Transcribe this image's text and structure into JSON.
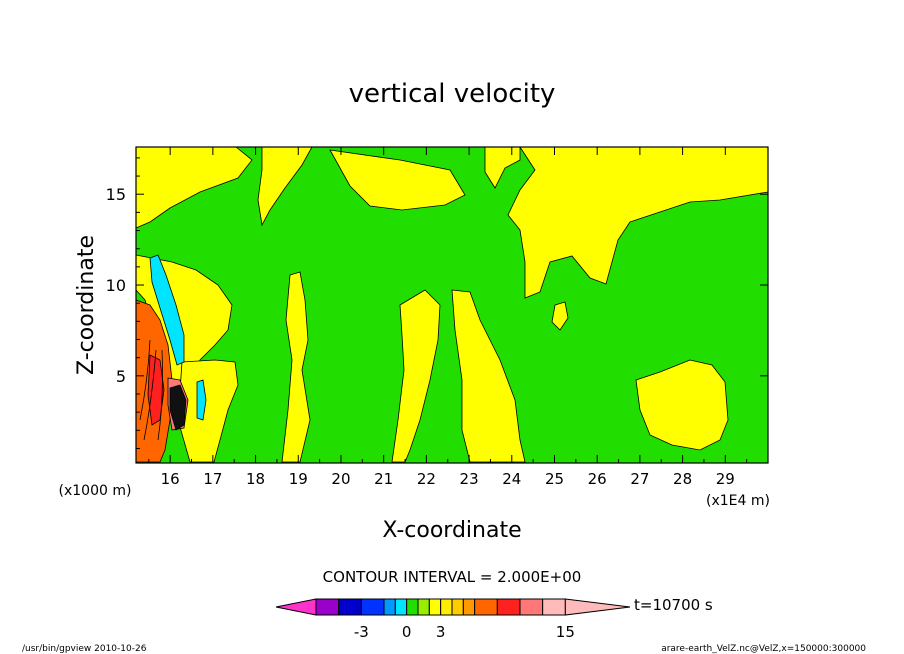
{
  "chart_data": {
    "type": "heatmap",
    "title": "vertical velocity",
    "xlabel": "X-coordinate",
    "ylabel": "Z-coordinate",
    "x_unit_left": "(x1000 m)",
    "x_unit_right": "(x1E4 m)",
    "xlim": [
      15.2,
      30.0
    ],
    "ylim": [
      0.2,
      17.6
    ],
    "x_ticks": [
      16,
      17,
      18,
      19,
      20,
      21,
      22,
      23,
      24,
      25,
      26,
      27,
      28,
      29
    ],
    "y_ticks": [
      5,
      10,
      15
    ],
    "contour_interval_text": "CONTOUR INTERVAL = 2.000E+00",
    "colorbar": {
      "levels": [
        -9,
        -7,
        -5,
        -3,
        -2,
        -1,
        0,
        1,
        2,
        3,
        4,
        5,
        7,
        9,
        11,
        13,
        15
      ],
      "colors": [
        "#ff33cc",
        "#9900cc",
        "#0000cc",
        "#0033ff",
        "#0099ff",
        "#00e5ff",
        "#22dd00",
        "#99ee00",
        "#ffff00",
        "#ffee00",
        "#ffcc00",
        "#ff9900",
        "#ff6600",
        "#ff2020",
        "#ff7777",
        "#ffbbbb"
      ],
      "labels": [
        {
          "value": -3,
          "text": "-3"
        },
        {
          "value": 0,
          "text": "0"
        },
        {
          "value": 3,
          "text": "3"
        },
        {
          "value": 15,
          "text": "15"
        }
      ]
    },
    "time_label": "t=10700 s",
    "footer_left": "/usr/bin/gpview   2010-10-26",
    "footer_right": "arare-earth_VelZ.nc@VelZ,x=150000:300000",
    "field_colors": {
      "negative": "#22dd00",
      "positive": "#ffff00",
      "strong_up": "#ff6600",
      "strong_down": "#00e5ff"
    }
  }
}
